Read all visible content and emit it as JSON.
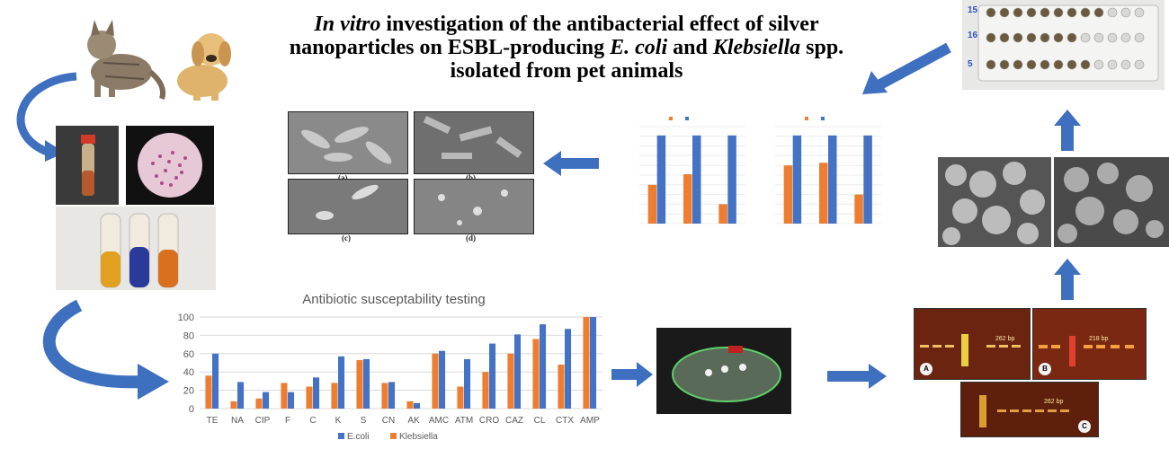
{
  "title": {
    "p1_italic": "In vitro",
    "p2": " investigation of the antibacterial effect of silver nanoparticles on ESBL-producing ",
    "p3_italic": "E. coli",
    "p4": " and ",
    "p5_italic": "Klebsiella",
    "p6": " spp. isolated from pet animals"
  },
  "sem_captions": [
    "(a)",
    "(b)",
    "(c)",
    "(d)"
  ],
  "plate_labels": [
    "15",
    "16",
    "5"
  ],
  "gel": {
    "labels": [
      "A",
      "B",
      "C"
    ],
    "bp_labels": [
      "262 bp",
      "218 bp",
      "262 bp"
    ]
  },
  "colors": {
    "arrow": "#3f6fbf",
    "ecoli": "#4472c4",
    "klebsiella": "#ed7d31"
  },
  "chart_data": [
    {
      "type": "bar",
      "title": "Antibiotic susceptability testing",
      "categories": [
        "TE",
        "NA",
        "CIP",
        "F",
        "C",
        "K",
        "S",
        "CN",
        "AK",
        "AMC",
        "ATM",
        "CRO",
        "CAZ",
        "CL",
        "CTX",
        "AMP"
      ],
      "series": [
        {
          "name": "E.coli",
          "values": [
            60,
            29,
            18,
            18,
            34,
            57,
            54,
            29,
            6,
            63,
            54,
            71,
            81,
            92,
            87,
            100
          ]
        },
        {
          "name": "Klebsiella",
          "values": [
            36,
            8,
            11,
            28,
            24,
            28,
            53,
            28,
            8,
            60,
            24,
            40,
            60,
            76,
            48,
            100
          ]
        }
      ],
      "ylim": [
        0,
        100
      ],
      "yticks": [
        0,
        20,
        40,
        60,
        80,
        100
      ],
      "legend_position": "bottom",
      "grid": true
    },
    {
      "type": "bar",
      "categories": [
        "",
        "",
        ""
      ],
      "series": [
        {
          "name": "",
          "values": [
            0.44,
            0.56,
            0.22
          ]
        },
        {
          "name": "",
          "values": [
            1.0,
            1.0,
            1.0
          ]
        }
      ],
      "ylim": [
        0,
        1.1
      ],
      "legend_position": "top"
    },
    {
      "type": "bar",
      "categories": [
        "",
        "",
        ""
      ],
      "series": [
        {
          "name": "",
          "values": [
            0.66,
            0.69,
            0.33
          ]
        },
        {
          "name": "",
          "values": [
            1.0,
            1.0,
            1.0
          ]
        }
      ],
      "ylim": [
        0,
        1.1
      ],
      "legend_position": "top"
    }
  ]
}
